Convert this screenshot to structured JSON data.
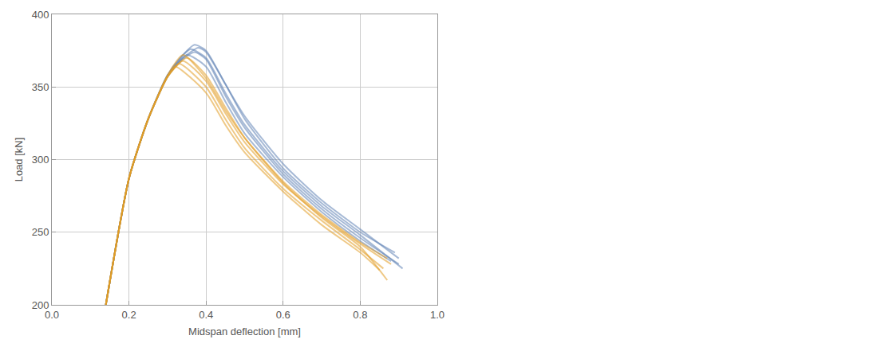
{
  "chart_data": {
    "type": "line",
    "xlabel": "Midspan deflection [mm]",
    "ylabel": "Load [kN]",
    "xlim": [
      0.0,
      1.0
    ],
    "ylim": [
      200,
      400
    ],
    "xticks": [
      {
        "value": 0.0,
        "label": "0.0"
      },
      0.2,
      0.4,
      0.6,
      0.8,
      {
        "value": 1.0,
        "label": "1.0"
      }
    ],
    "yticks": [
      200,
      250,
      300,
      350,
      400
    ],
    "grid": true,
    "series": [
      {
        "color": "#5e81b5",
        "x": [
          0.14,
          0.2,
          0.25,
          0.3,
          0.33,
          0.37,
          0.4,
          0.45,
          0.5,
          0.6,
          0.7,
          0.8,
          0.9
        ],
        "values": [
          200,
          287,
          328,
          358,
          369,
          379,
          375,
          352,
          330,
          297,
          272,
          252,
          232
        ]
      },
      {
        "color": "#5e81b5",
        "x": [
          0.14,
          0.2,
          0.25,
          0.3,
          0.33,
          0.36,
          0.4,
          0.45,
          0.5,
          0.6,
          0.7,
          0.8,
          0.91
        ],
        "values": [
          200,
          287,
          328,
          358,
          369,
          376,
          370,
          346,
          324,
          292,
          268,
          248,
          225
        ]
      },
      {
        "color": "#5e81b5",
        "x": [
          0.14,
          0.2,
          0.25,
          0.3,
          0.33,
          0.37,
          0.4,
          0.45,
          0.5,
          0.6,
          0.7,
          0.8,
          0.9
        ],
        "values": [
          200,
          287,
          328,
          357,
          367,
          374,
          369,
          344,
          322,
          290,
          266,
          246,
          228
        ]
      },
      {
        "color": "#5e81b5",
        "x": [
          0.14,
          0.2,
          0.25,
          0.3,
          0.35,
          0.4,
          0.45,
          0.5,
          0.6,
          0.7,
          0.8,
          0.88
        ],
        "values": [
          200,
          287,
          328,
          357,
          372,
          364,
          340,
          318,
          288,
          264,
          244,
          230
        ]
      },
      {
        "color": "#5e81b5",
        "x": [
          0.14,
          0.2,
          0.25,
          0.3,
          0.34,
          0.38,
          0.4,
          0.45,
          0.5,
          0.6,
          0.7,
          0.8,
          0.89
        ],
        "values": [
          200,
          287,
          328,
          358,
          370,
          377,
          374,
          352,
          328,
          294,
          270,
          250,
          236
        ]
      },
      {
        "color": "#e19c24",
        "x": [
          0.14,
          0.2,
          0.25,
          0.3,
          0.34,
          0.4,
          0.45,
          0.5,
          0.6,
          0.7,
          0.8,
          0.87
        ],
        "values": [
          200,
          287,
          328,
          358,
          372,
          356,
          334,
          315,
          285,
          262,
          243,
          232
        ]
      },
      {
        "color": "#e19c24",
        "x": [
          0.14,
          0.2,
          0.25,
          0.3,
          0.33,
          0.4,
          0.45,
          0.5,
          0.6,
          0.7,
          0.8,
          0.86
        ],
        "values": [
          200,
          287,
          328,
          357,
          366,
          350,
          328,
          308,
          280,
          258,
          238,
          225
        ]
      },
      {
        "color": "#e19c24",
        "x": [
          0.14,
          0.2,
          0.25,
          0.3,
          0.35,
          0.4,
          0.45,
          0.5,
          0.6,
          0.7,
          0.8,
          0.87
        ],
        "values": [
          200,
          287,
          328,
          357,
          370,
          358,
          336,
          315,
          284,
          260,
          240,
          217
        ]
      },
      {
        "color": "#e19c24",
        "x": [
          0.14,
          0.2,
          0.25,
          0.3,
          0.32,
          0.4,
          0.45,
          0.5,
          0.6,
          0.7,
          0.8,
          0.85
        ],
        "values": [
          200,
          287,
          328,
          357,
          364,
          346,
          324,
          305,
          278,
          255,
          236,
          224
        ]
      },
      {
        "color": "#e19c24",
        "x": [
          0.14,
          0.2,
          0.25,
          0.3,
          0.34,
          0.4,
          0.45,
          0.5,
          0.6,
          0.7,
          0.8,
          0.88
        ],
        "values": [
          200,
          287,
          328,
          357,
          368,
          354,
          332,
          312,
          283,
          261,
          242,
          228
        ]
      }
    ]
  }
}
